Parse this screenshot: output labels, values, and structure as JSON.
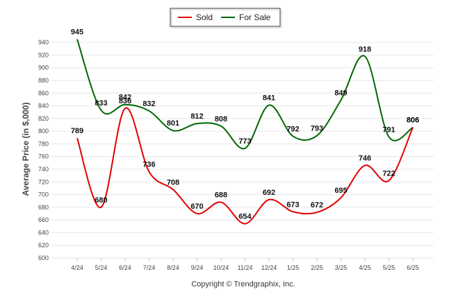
{
  "chart_data": {
    "type": "line",
    "ylabel": "Average Price (in $,000)",
    "xlabel": "",
    "ylim": [
      600,
      950
    ],
    "yticks": [
      600,
      620,
      640,
      660,
      680,
      700,
      720,
      740,
      760,
      780,
      800,
      820,
      840,
      860,
      880,
      900,
      920,
      940
    ],
    "grid": true,
    "legend_position": "top-center",
    "categories": [
      "4/24",
      "5/24",
      "6/24",
      "7/24",
      "8/24",
      "9/24",
      "10/24",
      "11/24",
      "12/24",
      "1/25",
      "2/25",
      "3/25",
      "4/25",
      "5/25",
      "6/25"
    ],
    "series": [
      {
        "name": "Sold",
        "color": "#e00000",
        "values": [
          789,
          680,
          836,
          736,
          708,
          670,
          688,
          654,
          692,
          673,
          672,
          695,
          746,
          722,
          806
        ]
      },
      {
        "name": "For Sale",
        "color": "#006600",
        "values": [
          945,
          833,
          842,
          832,
          801,
          812,
          808,
          773,
          841,
          792,
          793,
          849,
          918,
          791,
          806
        ]
      }
    ],
    "footer": "Copyright © Trendgraphix, Inc."
  }
}
